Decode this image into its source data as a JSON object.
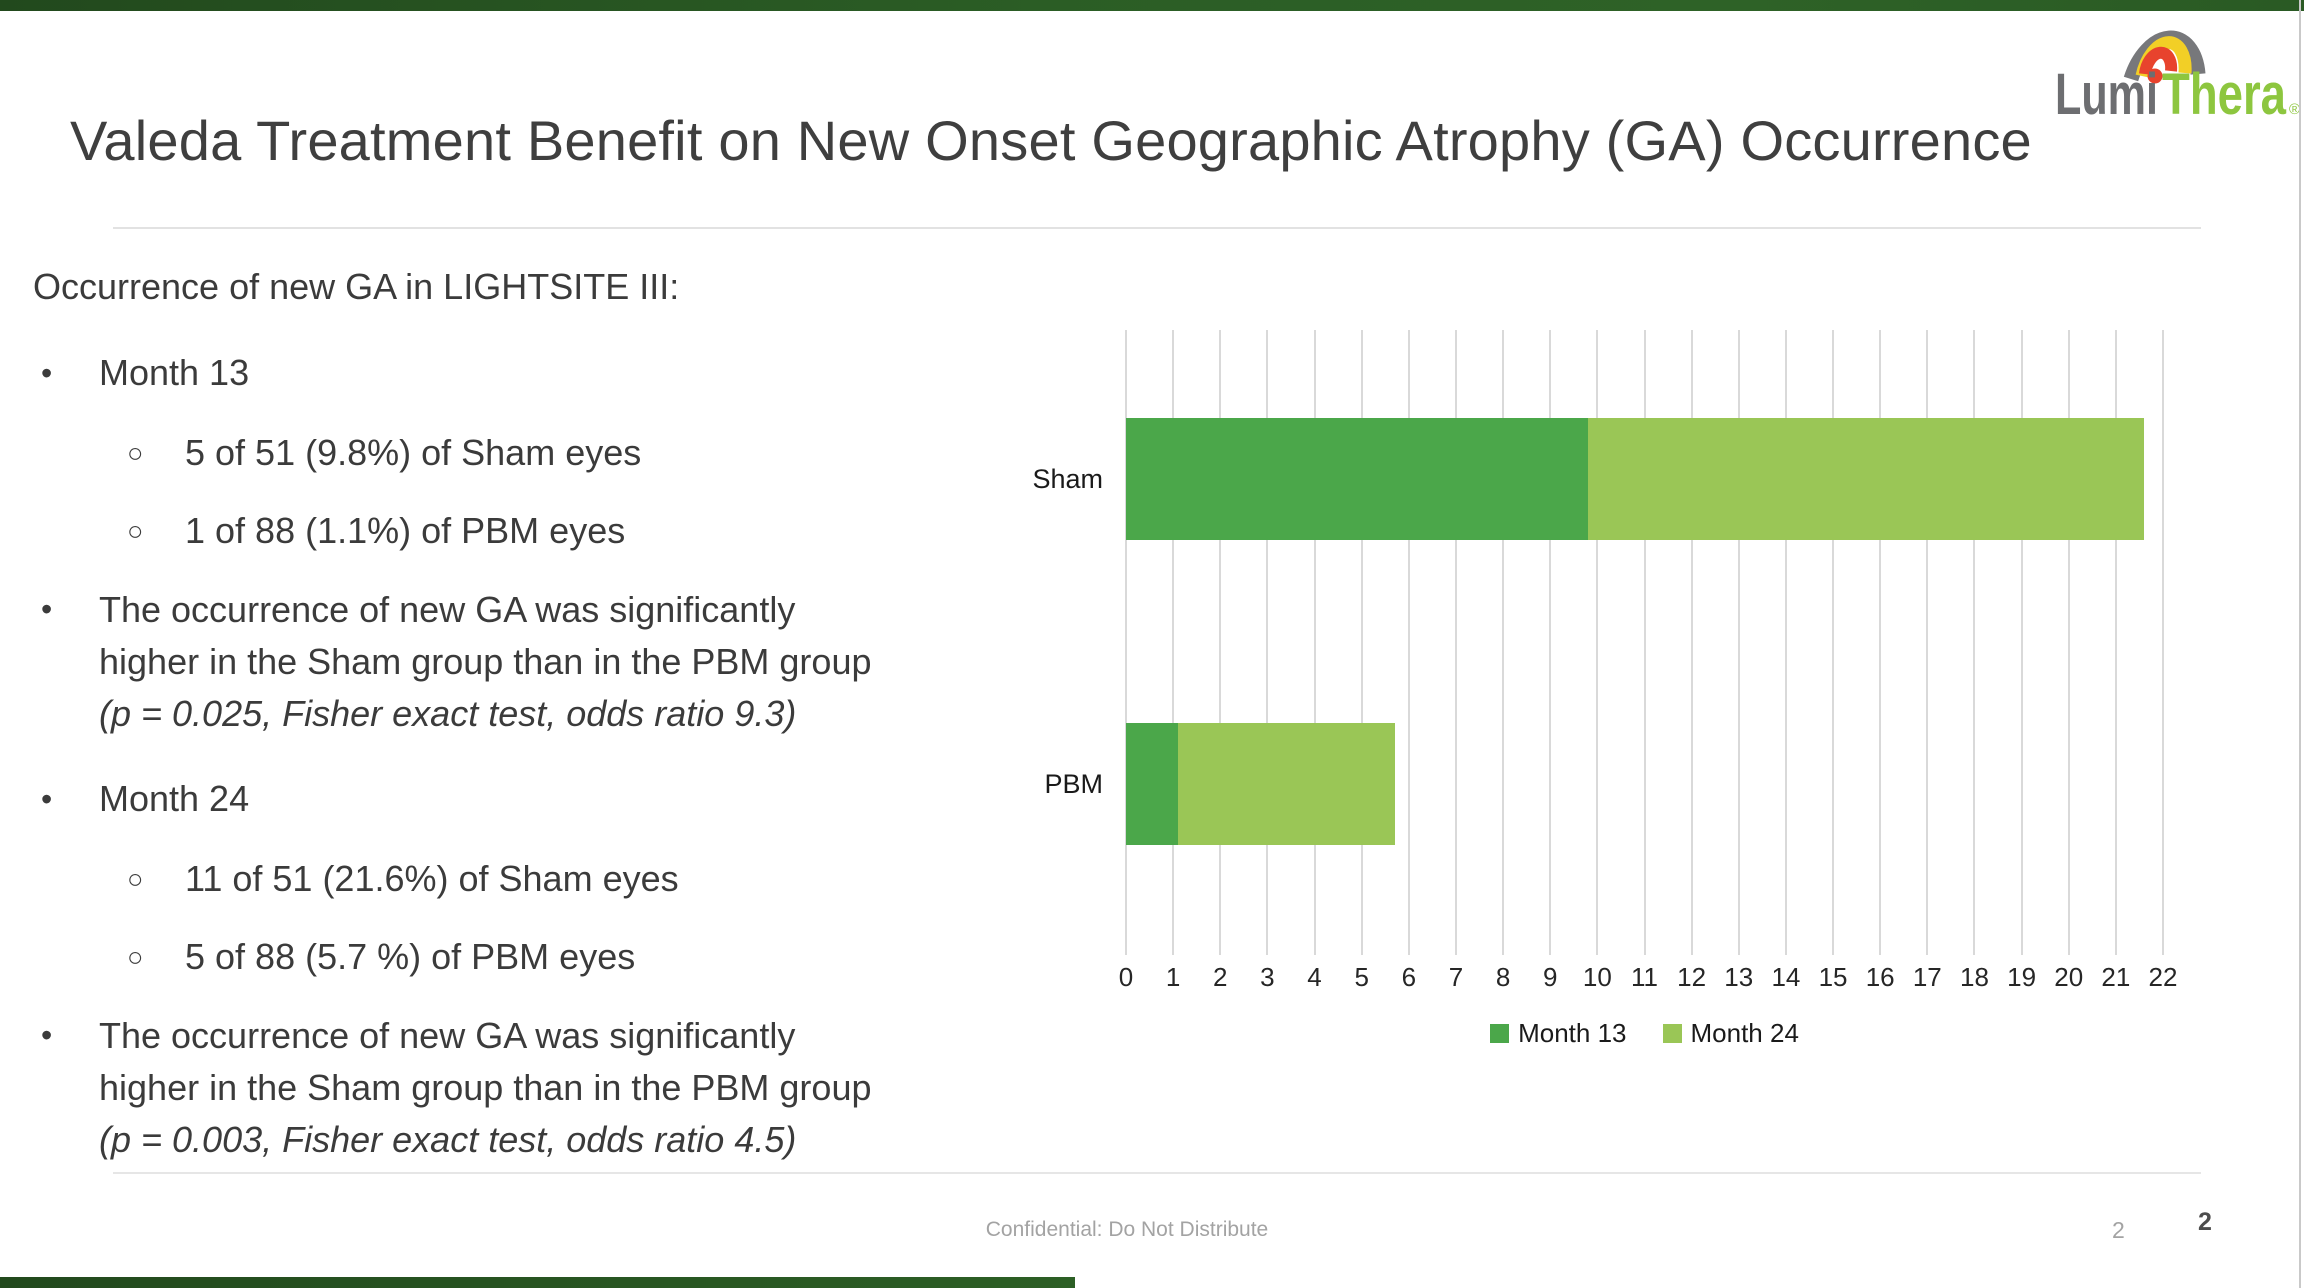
{
  "header": {
    "title": "Valeda Treatment Benefit on New Onset Geographic Atrophy (GA) Occurrence"
  },
  "logo": {
    "lumi": "Lumi",
    "thera": "Thera",
    "registered": "®",
    "gray": "#6d6e71",
    "green": "#8dc63f",
    "arc_gray": "#77787b",
    "arc_yellow": "#f2cf26",
    "arc_red": "#e8432d"
  },
  "content": {
    "heading": "Occurrence of new GA in LIGHTSITE III:",
    "marker_l1": "•",
    "marker_l2": "○",
    "items": [
      {
        "type": "b1",
        "text": "Month 13"
      },
      {
        "type": "b2",
        "text": "5 of 51 (9.8%) of Sham eyes"
      },
      {
        "type": "b2",
        "text": "1 of 88 (1.1%) of PBM eyes"
      },
      {
        "type": "p",
        "regular": "The occurrence of new GA was significantly\nhigher in the Sham group than in the PBM group",
        "italic": "(p = 0.025, Fisher exact test, odds ratio 9.3)"
      },
      {
        "type": "b1",
        "text": "Month 24"
      },
      {
        "type": "b2",
        "text": "11 of 51 (21.6%) of Sham eyes"
      },
      {
        "type": "b2",
        "text": "5 of 88 (5.7 %) of PBM eyes"
      },
      {
        "type": "p",
        "regular": "The occurrence of new GA was significantly\nhigher in the Sham group than in the PBM group",
        "italic": "(p = 0.003, Fisher exact test, odds ratio 4.5)"
      }
    ]
  },
  "chart_data": {
    "type": "bar",
    "orientation": "horizontal",
    "stacked": true,
    "categories": [
      "Sham",
      "PBM"
    ],
    "series": [
      {
        "name": "Month 13",
        "values": [
          9.8,
          1.1
        ],
        "color": "#4BA74A"
      },
      {
        "name": "Month 24",
        "values": [
          11.8,
          4.6
        ],
        "color": "#9AC656"
      }
    ],
    "cumulative_totals": [
      21.6,
      5.7
    ],
    "xlim": [
      0,
      22
    ],
    "xticks": [
      0,
      1,
      2,
      3,
      4,
      5,
      6,
      7,
      8,
      9,
      10,
      11,
      12,
      13,
      14,
      15,
      16,
      17,
      18,
      19,
      20,
      21,
      22
    ],
    "grid": "vertical",
    "gridline_color": "#d9d9d9",
    "legend_position": "bottom"
  },
  "footer": {
    "confidential": "Confidential: Do Not Distribute",
    "page_number_inner": "2",
    "page_number_outer": "2"
  }
}
